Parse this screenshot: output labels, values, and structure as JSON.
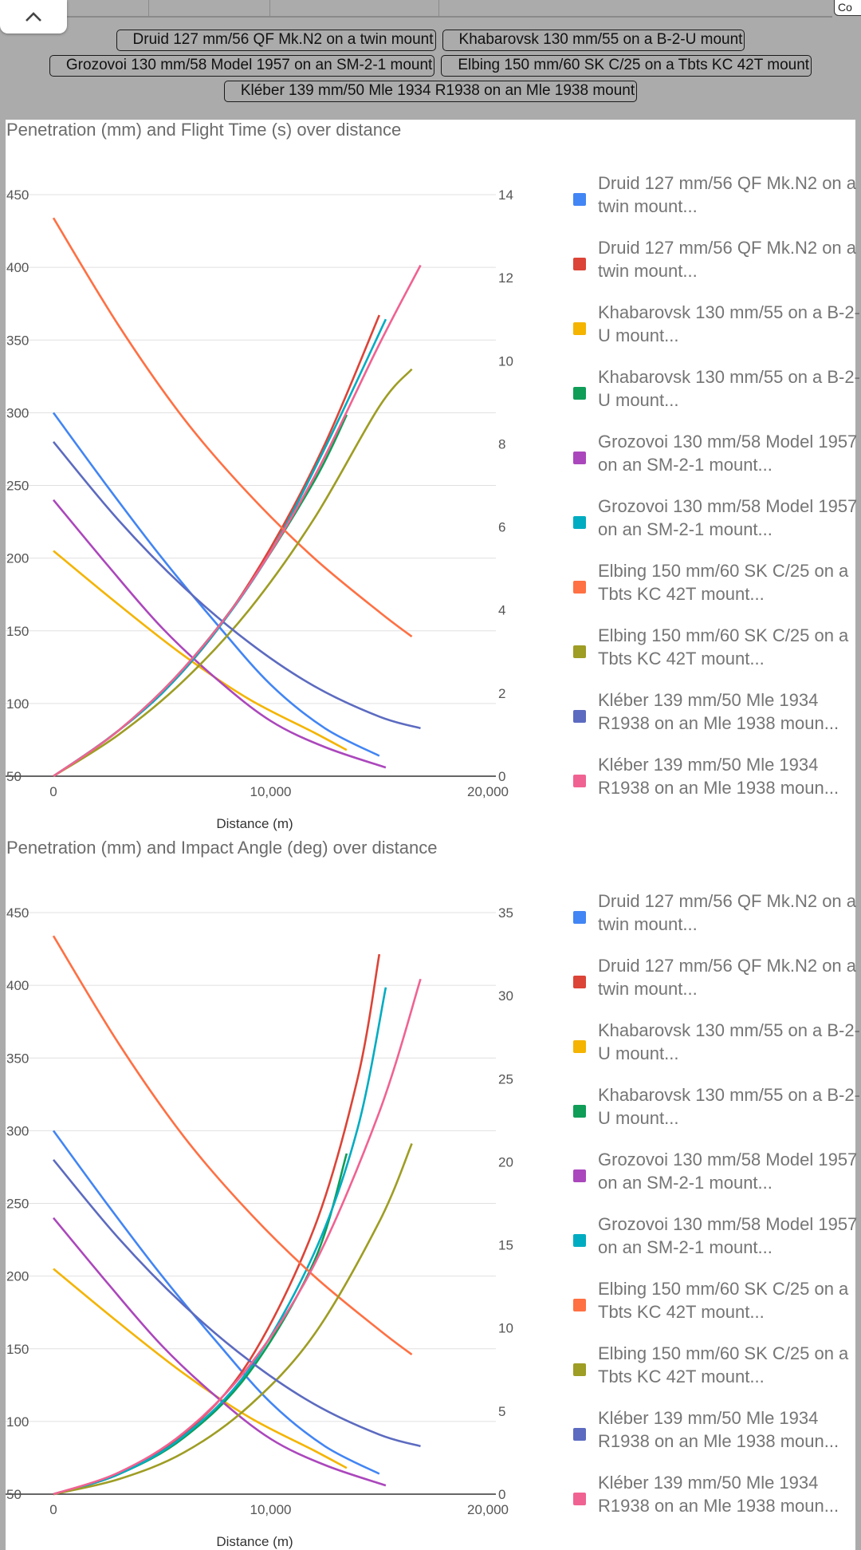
{
  "top": {
    "collapse_icon": "chevron-up-icon",
    "right_button_label": "Co"
  },
  "chips": [
    [
      "Druid 127 mm/56 QF Mk.N2 on a twin mount",
      "Khabarovsk 130 mm/55 on a B-2-U mount"
    ],
    [
      "Grozovoi 130 mm/58 Model 1957 on an SM-2-1 mount",
      "Elbing 150 mm/60 SK C/25 on a Tbts KC 42T mount"
    ],
    [
      "Kléber 139 mm/50 Mle 1934 R1938 on an Mle 1938 mount"
    ]
  ],
  "chart_data": [
    {
      "type": "line",
      "title": "Penetration (mm) and Flight Time (s) over distance",
      "xlabel": "Distance (m)",
      "xlim": [
        0,
        20000
      ],
      "x_ticks": [
        "0",
        "10,000",
        "20,000"
      ],
      "ylim_left": [
        50,
        450
      ],
      "y_ticks_left": [
        "50",
        "100",
        "150",
        "200",
        "250",
        "300",
        "350",
        "400",
        "450"
      ],
      "ylim_right": [
        0,
        14
      ],
      "y_ticks_right": [
        "0",
        "2",
        "4",
        "6",
        "8",
        "10",
        "12",
        "14"
      ],
      "grid": true,
      "legend_position": "right",
      "series": [
        {
          "name": "Druid 127 mm/56 QF Mk.N2 on a twin mount...",
          "color": "#4285f4",
          "axis": "left",
          "x": [
            0,
            2500,
            5000,
            7500,
            10000,
            12500,
            15000
          ],
          "y": [
            300,
            249,
            200,
            155,
            113,
            83,
            64
          ]
        },
        {
          "name": "Druid 127 mm/56 QF Mk.N2 on a twin mount...",
          "color": "#db4437",
          "axis": "right",
          "x": [
            0,
            2500,
            5000,
            7500,
            10000,
            12500,
            15000
          ],
          "y": [
            0,
            0.9,
            2.0,
            3.5,
            5.5,
            8.0,
            11.1
          ]
        },
        {
          "name": "Khabarovsk 130 mm/55 on a B-2-U mount...",
          "color": "#f4b400",
          "axis": "left",
          "x": [
            0,
            3000,
            6000,
            9000,
            12000,
            13500
          ],
          "y": [
            205,
            168,
            133,
            103,
            80,
            68
          ]
        },
        {
          "name": "Khabarovsk 130 mm/55 on a B-2-U mount...",
          "color": "#0f9d58",
          "axis": "right",
          "x": [
            0,
            3000,
            6000,
            9000,
            12000,
            13500
          ],
          "y": [
            0,
            1.1,
            2.6,
            4.6,
            7.1,
            8.7
          ]
        },
        {
          "name": "Grozovoi 130 mm/58 Model 1957 on an SM-2-1 mount...",
          "color": "#ab47bc",
          "axis": "left",
          "x": [
            0,
            2500,
            5000,
            7500,
            10000,
            12500,
            15300
          ],
          "y": [
            240,
            195,
            152,
            117,
            88,
            70,
            56
          ]
        },
        {
          "name": "Grozovoi 130 mm/58 Model 1957 on an SM-2-1 mount...",
          "color": "#00acc1",
          "axis": "right",
          "x": [
            0,
            2500,
            5000,
            7500,
            10000,
            12500,
            15300
          ],
          "y": [
            0,
            0.9,
            2.0,
            3.5,
            5.4,
            7.9,
            11.0
          ]
        },
        {
          "name": "Elbing 150 mm/60 SK C/25 on a Tbts KC 42T mount...",
          "color": "#ff7043",
          "axis": "left",
          "x": [
            0,
            3000,
            6000,
            9000,
            12000,
            15000,
            16500
          ],
          "y": [
            434,
            360,
            296,
            244,
            200,
            163,
            146
          ]
        },
        {
          "name": "Elbing 150 mm/60 SK C/25 on a Tbts KC 42T mount...",
          "color": "#9e9d24",
          "axis": "right",
          "x": [
            0,
            3000,
            6000,
            9000,
            12000,
            15000,
            16500
          ],
          "y": [
            0,
            1.0,
            2.3,
            4.0,
            6.2,
            8.9,
            9.8
          ]
        },
        {
          "name": "Kléber 139 mm/50 Mle 1934 R1938 on an Mle 1938 moun...",
          "color": "#5c6bc0",
          "axis": "left",
          "x": [
            0,
            3000,
            6000,
            9000,
            12000,
            15000,
            16900
          ],
          "y": [
            280,
            226,
            180,
            142,
            112,
            91,
            83
          ]
        },
        {
          "name": "Kléber 139 mm/50 Mle 1934 R1938 on an Mle 1938 moun...",
          "color": "#f06292",
          "axis": "right",
          "x": [
            0,
            3000,
            6000,
            9000,
            12000,
            15000,
            16900
          ],
          "y": [
            0,
            1.1,
            2.6,
            4.6,
            7.2,
            10.4,
            12.3
          ]
        }
      ]
    },
    {
      "type": "line",
      "title": "Penetration (mm) and Impact Angle (deg) over distance",
      "xlabel": "Distance (m)",
      "xlim": [
        0,
        20000
      ],
      "x_ticks": [
        "0",
        "10,000",
        "20,000"
      ],
      "ylim_left": [
        50,
        450
      ],
      "y_ticks_left": [
        "50",
        "100",
        "150",
        "200",
        "250",
        "300",
        "350",
        "400",
        "450"
      ],
      "ylim_right": [
        0,
        35
      ],
      "y_ticks_right": [
        "0",
        "5",
        "10",
        "15",
        "20",
        "25",
        "30",
        "35"
      ],
      "grid": true,
      "legend_position": "right",
      "series": [
        {
          "name": "Druid 127 mm/56 QF Mk.N2 on a twin mount...",
          "color": "#4285f4",
          "axis": "left",
          "x": [
            0,
            2500,
            5000,
            7500,
            10000,
            12500,
            15000
          ],
          "y": [
            300,
            249,
            200,
            155,
            113,
            83,
            64
          ]
        },
        {
          "name": "Druid 127 mm/56 QF Mk.N2 on a twin mount...",
          "color": "#db4437",
          "axis": "right",
          "x": [
            0,
            3000,
            6000,
            9000,
            12000,
            14000,
            15000
          ],
          "y": [
            0,
            1.2,
            3.6,
            8.0,
            16.0,
            25.0,
            32.5
          ]
        },
        {
          "name": "Khabarovsk 130 mm/55 on a B-2-U mount...",
          "color": "#f4b400",
          "axis": "left",
          "x": [
            0,
            3000,
            6000,
            9000,
            12000,
            13500
          ],
          "y": [
            205,
            168,
            133,
            103,
            80,
            68
          ]
        },
        {
          "name": "Khabarovsk 130 mm/55 on a B-2-U mount...",
          "color": "#0f9d58",
          "axis": "right",
          "x": [
            0,
            3000,
            6000,
            9000,
            12000,
            13500
          ],
          "y": [
            0,
            1.2,
            3.4,
            7.3,
            14.0,
            20.5
          ]
        },
        {
          "name": "Grozovoi 130 mm/58 Model 1957 on an SM-2-1 mount...",
          "color": "#ab47bc",
          "axis": "left",
          "x": [
            0,
            2500,
            5000,
            7500,
            10000,
            12500,
            15300
          ],
          "y": [
            240,
            195,
            152,
            117,
            88,
            70,
            56
          ]
        },
        {
          "name": "Grozovoi 130 mm/58 Model 1957 on an SM-2-1 mount...",
          "color": "#00acc1",
          "axis": "right",
          "x": [
            0,
            3000,
            6000,
            9000,
            12000,
            14000,
            15300
          ],
          "y": [
            0,
            1.2,
            3.5,
            7.5,
            14.5,
            22.0,
            30.5
          ]
        },
        {
          "name": "Elbing 150 mm/60 SK C/25 on a Tbts KC 42T mount...",
          "color": "#ff7043",
          "axis": "left",
          "x": [
            0,
            3000,
            6000,
            9000,
            12000,
            15000,
            16500
          ],
          "y": [
            434,
            360,
            296,
            244,
            200,
            163,
            146
          ]
        },
        {
          "name": "Elbing 150 mm/60 SK C/25 on a Tbts KC 42T mount...",
          "color": "#9e9d24",
          "axis": "right",
          "x": [
            0,
            3000,
            6000,
            9000,
            12000,
            15000,
            16500
          ],
          "y": [
            0,
            0.9,
            2.5,
            5.3,
            9.6,
            16.4,
            21.1
          ]
        },
        {
          "name": "Kléber 139 mm/50 Mle 1934 R1938 on an Mle 1938 moun...",
          "color": "#5c6bc0",
          "axis": "left",
          "x": [
            0,
            3000,
            6000,
            9000,
            12000,
            15000,
            16900
          ],
          "y": [
            280,
            226,
            180,
            142,
            112,
            91,
            83
          ]
        },
        {
          "name": "Kléber 139 mm/50 Mle 1934 R1938 on an Mle 1938 moun...",
          "color": "#f06292",
          "axis": "right",
          "x": [
            0,
            3000,
            6000,
            9000,
            12000,
            15000,
            16900
          ],
          "y": [
            0,
            1.3,
            3.7,
            7.7,
            13.8,
            23.0,
            31.0
          ]
        }
      ]
    }
  ]
}
